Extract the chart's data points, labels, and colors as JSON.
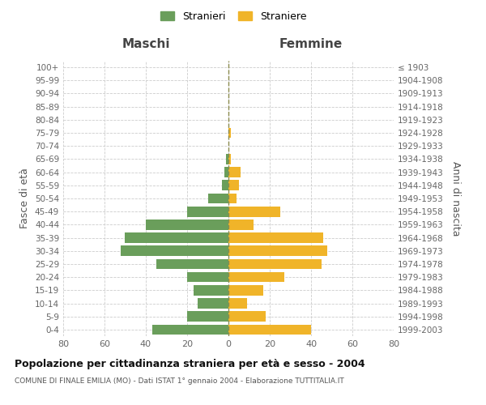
{
  "age_groups": [
    "0-4",
    "5-9",
    "10-14",
    "15-19",
    "20-24",
    "25-29",
    "30-34",
    "35-39",
    "40-44",
    "45-49",
    "50-54",
    "55-59",
    "60-64",
    "65-69",
    "70-74",
    "75-79",
    "80-84",
    "85-89",
    "90-94",
    "95-99",
    "100+"
  ],
  "birth_years": [
    "1999-2003",
    "1994-1998",
    "1989-1993",
    "1984-1988",
    "1979-1983",
    "1974-1978",
    "1969-1973",
    "1964-1968",
    "1959-1963",
    "1954-1958",
    "1949-1953",
    "1944-1948",
    "1939-1943",
    "1934-1938",
    "1929-1933",
    "1924-1928",
    "1919-1923",
    "1914-1918",
    "1909-1913",
    "1904-1908",
    "≤ 1903"
  ],
  "maschi": [
    37,
    20,
    15,
    17,
    20,
    35,
    52,
    50,
    40,
    20,
    10,
    3,
    2,
    1,
    0,
    0,
    0,
    0,
    0,
    0,
    0
  ],
  "femmine": [
    40,
    18,
    9,
    17,
    27,
    45,
    48,
    46,
    12,
    25,
    4,
    5,
    6,
    1,
    0,
    1,
    0,
    0,
    0,
    0,
    0
  ],
  "maschi_color": "#6a9e5b",
  "femmine_color": "#f0b429",
  "xlim": 80,
  "title": "Popolazione per cittadinanza straniera per età e sesso - 2004",
  "subtitle": "COMUNE DI FINALE EMILIA (MO) - Dati ISTAT 1° gennaio 2004 - Elaborazione TUTTITALIA.IT",
  "ylabel_left": "Fasce di età",
  "ylabel_right": "Anni di nascita",
  "xlabel_left": "Maschi",
  "xlabel_right": "Femmine",
  "legend_stranieri": "Stranieri",
  "legend_straniere": "Straniere",
  "background_color": "#ffffff",
  "grid_color": "#cccccc"
}
